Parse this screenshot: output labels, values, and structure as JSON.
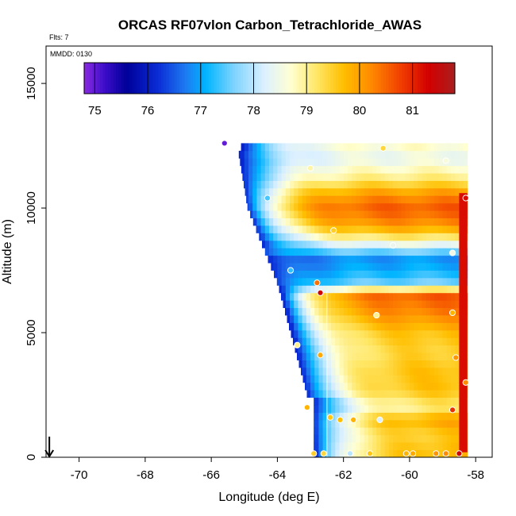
{
  "chart_data": {
    "type": "heatmap",
    "title": "ORCAS RF07vlon Carbon_Tetrachloride_AWAS",
    "flights_label": "Flts: 7",
    "date_label": "MMDD: 0130",
    "xlabel": "Longitude (deg E)",
    "ylabel": "Altitude (m)",
    "xlim": [
      -71.0,
      -57.5
    ],
    "ylim": [
      0,
      16500
    ],
    "xticks": [
      -70,
      -68,
      -66,
      -64,
      -62,
      -60,
      -58
    ],
    "yticks": [
      0,
      5000,
      10000,
      15000
    ],
    "colorbar": {
      "min": 74.8,
      "max": 81.8,
      "ticks": [
        75,
        76,
        77,
        78,
        79,
        80,
        81
      ],
      "stops": [
        {
          "v": 74.8,
          "c": "#8a2be2"
        },
        {
          "v": 75.2,
          "c": "#3a0cc8"
        },
        {
          "v": 75.6,
          "c": "#000099"
        },
        {
          "v": 76.2,
          "c": "#0a2dd6"
        },
        {
          "v": 76.7,
          "c": "#1e78f0"
        },
        {
          "v": 77.1,
          "c": "#00b4ff"
        },
        {
          "v": 77.6,
          "c": "#78d2ff"
        },
        {
          "v": 78.2,
          "c": "#dcf0ff"
        },
        {
          "v": 78.7,
          "c": "#ffffd2"
        },
        {
          "v": 79.2,
          "c": "#ffe664"
        },
        {
          "v": 79.7,
          "c": "#ffbe00"
        },
        {
          "v": 80.2,
          "c": "#ff8c00"
        },
        {
          "v": 80.8,
          "c": "#f03c00"
        },
        {
          "v": 81.3,
          "c": "#d20000"
        },
        {
          "v": 81.8,
          "c": "#aa1e1e"
        }
      ]
    },
    "curtain": {
      "lon_min": -65.5,
      "lon_max": -58.3,
      "alt_step": 300,
      "right_edge_column": {
        "lon": [
          -58.5,
          -58.25
        ],
        "alt": [
          200,
          10600
        ],
        "value": 81.2
      },
      "profile": [
        {
          "alt": 100,
          "value": 79.8
        },
        {
          "alt": 900,
          "value": 79.6
        },
        {
          "alt": 1500,
          "value": 80.0
        },
        {
          "alt": 2000,
          "value": 79.1
        },
        {
          "alt": 2700,
          "value": 79.7
        },
        {
          "alt": 3500,
          "value": 79.7
        },
        {
          "alt": 4200,
          "value": 79.5
        },
        {
          "alt": 5000,
          "value": 79.7
        },
        {
          "alt": 5800,
          "value": 80.3
        },
        {
          "alt": 6500,
          "value": 80.6
        },
        {
          "alt": 7000,
          "value": 77.6
        },
        {
          "alt": 7500,
          "value": 77.1
        },
        {
          "alt": 8000,
          "value": 76.9
        },
        {
          "alt": 8500,
          "value": 78.3
        },
        {
          "alt": 9000,
          "value": 79.6
        },
        {
          "alt": 9500,
          "value": 80.3
        },
        {
          "alt": 10000,
          "value": 80.6
        },
        {
          "alt": 10500,
          "value": 80.2
        },
        {
          "alt": 11200,
          "value": 79.1
        },
        {
          "alt": 12000,
          "value": 78.4
        },
        {
          "alt": 12600,
          "value": 78.8
        }
      ]
    },
    "samples": [
      {
        "lon": -65.6,
        "alt": 12600,
        "value": 75.0
      },
      {
        "lon": -64.3,
        "alt": 10400,
        "value": 77.4
      },
      {
        "lon": -63.6,
        "alt": 7500,
        "value": 77.3
      },
      {
        "lon": -63.0,
        "alt": 11600,
        "value": 78.9
      },
      {
        "lon": -62.3,
        "alt": 9100,
        "value": 79.5
      },
      {
        "lon": -60.8,
        "alt": 12400,
        "value": 79.4
      },
      {
        "lon": -60.5,
        "alt": 8500,
        "value": 78.4
      },
      {
        "lon": -58.7,
        "alt": 8200,
        "value": 78.5
      },
      {
        "lon": -58.9,
        "alt": 11900,
        "value": 78.6
      },
      {
        "lon": -58.3,
        "alt": 10400,
        "value": 81.2
      },
      {
        "lon": -62.8,
        "alt": 7000,
        "value": 80.4
      },
      {
        "lon": -62.7,
        "alt": 6600,
        "value": 81.3
      },
      {
        "lon": -61.0,
        "alt": 5700,
        "value": 79.0
      },
      {
        "lon": -58.7,
        "alt": 5800,
        "value": 79.8
      },
      {
        "lon": -63.4,
        "alt": 4500,
        "value": 79.0
      },
      {
        "lon": -62.7,
        "alt": 4100,
        "value": 79.9
      },
      {
        "lon": -58.6,
        "alt": 4000,
        "value": 80.1
      },
      {
        "lon": -58.3,
        "alt": 3000,
        "value": 80.2
      },
      {
        "lon": -63.1,
        "alt": 2000,
        "value": 79.8
      },
      {
        "lon": -58.7,
        "alt": 1900,
        "value": 80.9
      },
      {
        "lon": -62.4,
        "alt": 1600,
        "value": 79.6
      },
      {
        "lon": -62.1,
        "alt": 1500,
        "value": 79.7
      },
      {
        "lon": -61.7,
        "alt": 1500,
        "value": 79.8
      },
      {
        "lon": -60.9,
        "alt": 1500,
        "value": 78.2
      },
      {
        "lon": -62.9,
        "alt": 150,
        "value": 79.5
      },
      {
        "lon": -62.6,
        "alt": 150,
        "value": 79.4
      },
      {
        "lon": -61.8,
        "alt": 150,
        "value": 78.0
      },
      {
        "lon": -61.2,
        "alt": 150,
        "value": 79.6
      },
      {
        "lon": -60.1,
        "alt": 150,
        "value": 79.8
      },
      {
        "lon": -59.9,
        "alt": 150,
        "value": 79.9
      },
      {
        "lon": -59.2,
        "alt": 150,
        "value": 80.1
      },
      {
        "lon": -58.9,
        "alt": 150,
        "value": 80.2
      },
      {
        "lon": -58.5,
        "alt": 150,
        "value": 81.4
      }
    ],
    "track_line": {
      "lon": -62.5,
      "alt": [
        0,
        6700
      ]
    },
    "arrow_marker": {
      "lon": -70.9,
      "alt": [
        0,
        700
      ]
    }
  }
}
